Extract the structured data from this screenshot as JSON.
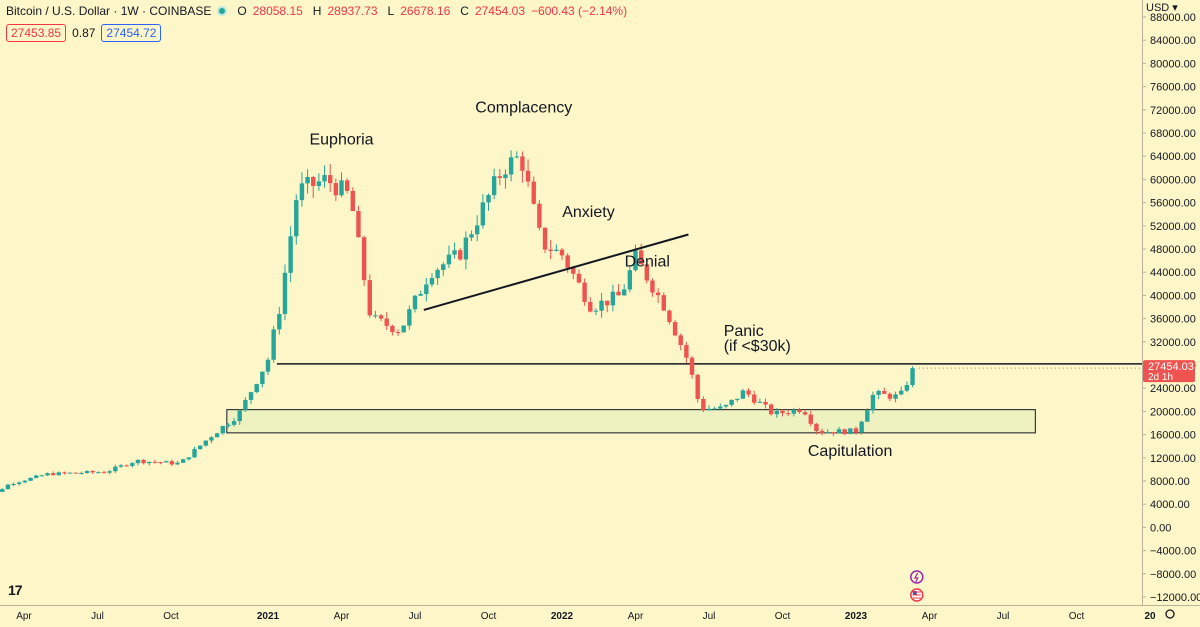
{
  "header": {
    "symbol": "Bitcoin / U.S. Dollar · 1W · COINBASE",
    "open_key": "O",
    "open": "28058.15",
    "high_key": "H",
    "high": "28937.73",
    "low_key": "L",
    "low": "26678.16",
    "close_key": "C",
    "close": "27454.03",
    "change": "−600.43 (−2.14%)",
    "sell_price": "27453.85",
    "spread": "0.87",
    "buy_price": "27454.72",
    "currency": "USD"
  },
  "price_badge": {
    "price": "27454.03",
    "countdown": "2d 1h"
  },
  "logo_text": "17",
  "colors": {
    "up": "#26a69a",
    "down": "#ef5350",
    "background": "#fdf6c8",
    "zone_fill": "#eef2c0",
    "badge": "#ef5350"
  },
  "chart_data": {
    "type": "candlestick",
    "title": "Bitcoin / U.S. Dollar · 1W · COINBASE",
    "ylim": [
      -12000,
      88000
    ],
    "y_ticks": [
      88000,
      84000,
      80000,
      76000,
      72000,
      68000,
      64000,
      60000,
      56000,
      52000,
      48000,
      44000,
      40000,
      36000,
      32000,
      28000,
      24000,
      20000,
      16000,
      12000,
      8000,
      4000,
      0,
      -4000,
      -8000,
      -12000
    ],
    "y_tick_labels": [
      "88000.00",
      "84000.00",
      "80000.00",
      "76000.00",
      "72000.00",
      "68000.00",
      "64000.00",
      "60000.00",
      "56000.00",
      "52000.00",
      "48000.00",
      "44000.00",
      "40000.00",
      "36000.00",
      "32000.00",
      "28000.00",
      "24000.00",
      "20000.00",
      "16000.00",
      "12000.00",
      "8000.00",
      "4000.00",
      "0.00",
      "−4000.00",
      "−8000.00",
      "−12000.00"
    ],
    "x_ticks": [
      {
        "label": "Apr",
        "t": 0.17,
        "bold": false
      },
      {
        "label": "Jul",
        "t": 0.42,
        "bold": false
      },
      {
        "label": "Oct",
        "t": 0.67,
        "bold": false
      },
      {
        "label": "2021",
        "t": 1.0,
        "bold": true
      },
      {
        "label": "Apr",
        "t": 1.25,
        "bold": false
      },
      {
        "label": "Jul",
        "t": 1.5,
        "bold": false
      },
      {
        "label": "Oct",
        "t": 1.75,
        "bold": false
      },
      {
        "label": "2022",
        "t": 2.0,
        "bold": true
      },
      {
        "label": "Apr",
        "t": 2.25,
        "bold": false
      },
      {
        "label": "Jul",
        "t": 2.5,
        "bold": false
      },
      {
        "label": "Oct",
        "t": 2.75,
        "bold": false
      },
      {
        "label": "2023",
        "t": 3.0,
        "bold": true
      },
      {
        "label": "Apr",
        "t": 3.25,
        "bold": false
      },
      {
        "label": "Jul",
        "t": 3.5,
        "bold": false
      },
      {
        "label": "Oct",
        "t": 3.75,
        "bold": false
      },
      {
        "label": "20",
        "t": 4.0,
        "bold": true
      }
    ],
    "x_range": [
      0,
      4.05
    ],
    "key_points": [
      {
        "t": 0.0,
        "price": 9000
      },
      {
        "t": 0.06,
        "price": 5500
      },
      {
        "t": 0.12,
        "price": 7500
      },
      {
        "t": 0.25,
        "price": 9200
      },
      {
        "t": 0.45,
        "price": 9600
      },
      {
        "t": 0.55,
        "price": 11500
      },
      {
        "t": 0.7,
        "price": 11000
      },
      {
        "t": 0.8,
        "price": 15500
      },
      {
        "t": 0.9,
        "price": 19500
      },
      {
        "t": 1.0,
        "price": 29000
      },
      {
        "t": 1.04,
        "price": 38000
      },
      {
        "t": 1.1,
        "price": 58000
      },
      {
        "t": 1.2,
        "price": 60000
      },
      {
        "t": 1.28,
        "price": 57000
      },
      {
        "t": 1.35,
        "price": 36000
      },
      {
        "t": 1.45,
        "price": 34000
      },
      {
        "t": 1.55,
        "price": 44000
      },
      {
        "t": 1.65,
        "price": 47000
      },
      {
        "t": 1.8,
        "price": 62000
      },
      {
        "t": 1.86,
        "price": 64000
      },
      {
        "t": 1.93,
        "price": 49000
      },
      {
        "t": 2.0,
        "price": 47000
      },
      {
        "t": 2.1,
        "price": 38000
      },
      {
        "t": 2.2,
        "price": 40000
      },
      {
        "t": 2.25,
        "price": 46500
      },
      {
        "t": 2.35,
        "price": 38000
      },
      {
        "t": 2.43,
        "price": 28500
      },
      {
        "t": 2.47,
        "price": 20500
      },
      {
        "t": 2.55,
        "price": 20500
      },
      {
        "t": 2.62,
        "price": 23500
      },
      {
        "t": 2.72,
        "price": 19500
      },
      {
        "t": 2.82,
        "price": 20500
      },
      {
        "t": 2.87,
        "price": 16500
      },
      {
        "t": 3.0,
        "price": 16600
      },
      {
        "t": 3.06,
        "price": 23000
      },
      {
        "t": 3.15,
        "price": 22500
      },
      {
        "t": 3.2,
        "price": 28000
      }
    ],
    "annotations": [
      {
        "label": "Euphoria",
        "t": 1.25,
        "price": 66000
      },
      {
        "label": "Complacency",
        "t": 1.87,
        "price": 71500
      },
      {
        "label": "Anxiety",
        "t": 2.09,
        "price": 53500
      },
      {
        "label": "Denial",
        "t": 2.29,
        "price": 45000
      },
      {
        "label": "Panic",
        "t": 2.55,
        "price": 33000
      },
      {
        "label": "(if <$30k)",
        "t": 2.55,
        "price": 30400
      },
      {
        "label": "Capitulation",
        "t": 2.98,
        "price": 12300
      }
    ],
    "trendline": {
      "t1": 1.53,
      "p1": 37500,
      "t2": 2.43,
      "p2": 50500
    },
    "horizontal_line": {
      "t1": 1.03,
      "price": 28200
    },
    "support_zone": {
      "t1": 0.86,
      "t2": 3.61,
      "low": 16300,
      "high": 20300
    }
  }
}
